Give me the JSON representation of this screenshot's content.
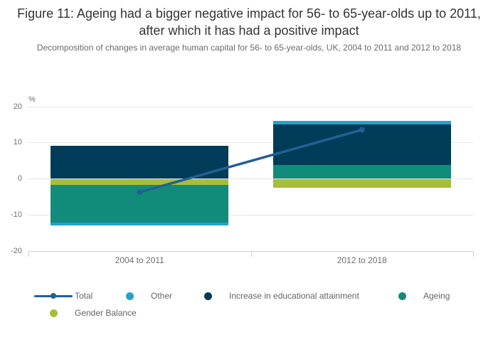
{
  "title": "Figure 11: Ageing had a bigger negative impact for 56- to 65-year-olds up to 2011, after which it has had a positive impact",
  "subtitle": "Decomposition of changes in average human capital for 56- to 65-year-olds, UK, 2004 to 2011 and 2012 to 2018",
  "chart_data": {
    "type": "bar",
    "stacked": true,
    "title": "Figure 11: Ageing had a bigger negative impact for 56- to 65-year-olds up to 2011, after which it has had a positive impact",
    "subtitle": "Decomposition of changes in average human capital for 56- to 65-year-olds, UK, 2004 to 2011 and 2012 to 2018",
    "unit_label": "%",
    "categories": [
      "2004 to 2011",
      "2012 to 2018"
    ],
    "series": [
      {
        "name": "Gender Balance",
        "color": "#A8BD3A",
        "values": [
          -1.7,
          -2.5
        ]
      },
      {
        "name": "Ageing",
        "color": "#118C7B",
        "values": [
          -10.4,
          3.9
        ]
      },
      {
        "name": "Increase in educational attainment",
        "color": "#003C57",
        "values": [
          9.2,
          11.2
        ]
      },
      {
        "name": "Other",
        "color": "#27A0CC",
        "values": [
          -0.8,
          0.9
        ]
      }
    ],
    "line_series": {
      "name": "Total",
      "color": "#206095",
      "values": [
        -3.7,
        13.6
      ]
    },
    "ylim": [
      -20,
      20
    ],
    "yticks": [
      20,
      10,
      0,
      -10,
      -20
    ],
    "grid": true,
    "legend_position": "bottom",
    "stack_note": "series array is stacking order from zero outward; totals: -3.7 and +13.6"
  },
  "legend": {
    "items": [
      {
        "label": "Total",
        "type": "line",
        "color": "#206095"
      },
      {
        "label": "Other",
        "type": "dot",
        "color": "#27A0CC"
      },
      {
        "label": "Increase in educational attainment",
        "type": "dot",
        "color": "#003C57"
      },
      {
        "label": "Ageing",
        "type": "dot",
        "color": "#118C7B"
      },
      {
        "label": "Gender Balance",
        "type": "dot",
        "color": "#A8BD3A"
      }
    ]
  }
}
